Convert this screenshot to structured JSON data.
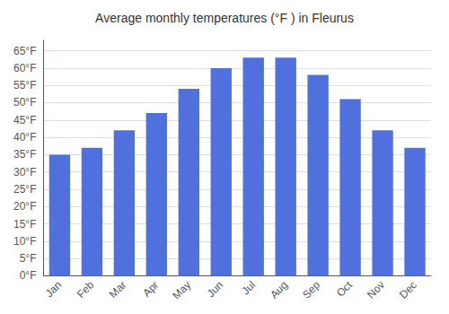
{
  "chart_data": {
    "type": "bar",
    "title": "Average monthly temperatures (°F ) in Fleurus",
    "categories": [
      "Jan",
      "Feb",
      "Mar",
      "Apr",
      "May",
      "Jun",
      "Jul",
      "Aug",
      "Sep",
      "Oct",
      "Nov",
      "Dec"
    ],
    "values": [
      35,
      37,
      42,
      47,
      54,
      60,
      63,
      63,
      58,
      51,
      42,
      37
    ],
    "ylim": [
      0,
      68
    ],
    "yticks": [
      {
        "value": 0,
        "label": "0°F"
      },
      {
        "value": 5,
        "label": "5°F"
      },
      {
        "value": 10,
        "label": "10°F"
      },
      {
        "value": 15,
        "label": "15°F"
      },
      {
        "value": 20,
        "label": "20°F"
      },
      {
        "value": 25,
        "label": "25°F"
      },
      {
        "value": 30,
        "label": "30°F"
      },
      {
        "value": 35,
        "label": "35°F"
      },
      {
        "value": 40,
        "label": "40°F"
      },
      {
        "value": 45,
        "label": "45°F"
      },
      {
        "value": 50,
        "label": "50°F"
      },
      {
        "value": 55,
        "label": "55°F"
      },
      {
        "value": 60,
        "label": "60°F"
      },
      {
        "value": 65,
        "label": "65°F"
      }
    ],
    "grid": true
  }
}
